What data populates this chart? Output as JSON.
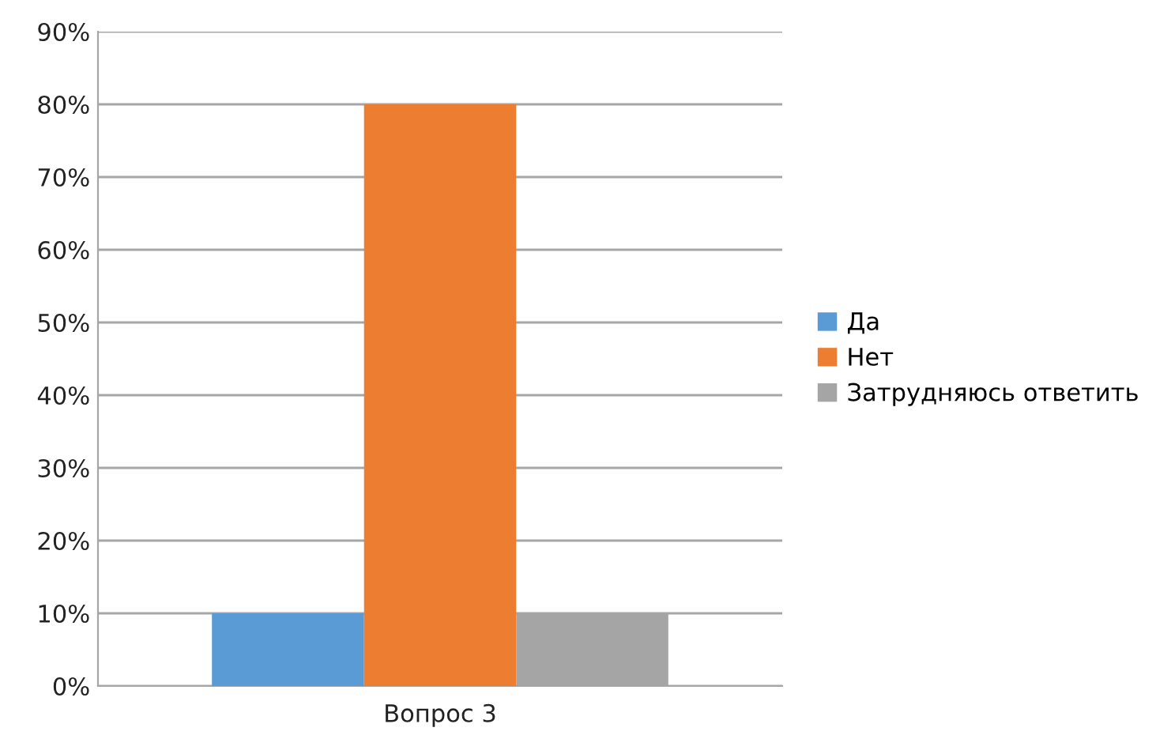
{
  "chart_data": {
    "type": "bar",
    "categories": [
      "Вопрос 3"
    ],
    "series": [
      {
        "name": "Да",
        "color": "#5b9bd5",
        "values": [
          10
        ]
      },
      {
        "name": "Нет",
        "color": "#ed7d31",
        "values": [
          80
        ]
      },
      {
        "name": "Затрудняюсь ответить",
        "color": "#a5a5a5",
        "values": [
          10
        ]
      }
    ],
    "ylim": [
      0,
      90
    ],
    "yticks": [
      {
        "value": 0,
        "label": "0%"
      },
      {
        "value": 10,
        "label": "10%"
      },
      {
        "value": 20,
        "label": "20%"
      },
      {
        "value": 30,
        "label": "30%"
      },
      {
        "value": 40,
        "label": "40%"
      },
      {
        "value": 50,
        "label": "50%"
      },
      {
        "value": 60,
        "label": "60%"
      },
      {
        "value": 70,
        "label": "70%"
      },
      {
        "value": 80,
        "label": "80%"
      },
      {
        "value": 90,
        "label": "90%"
      }
    ],
    "grid": "y",
    "legend": "right"
  }
}
